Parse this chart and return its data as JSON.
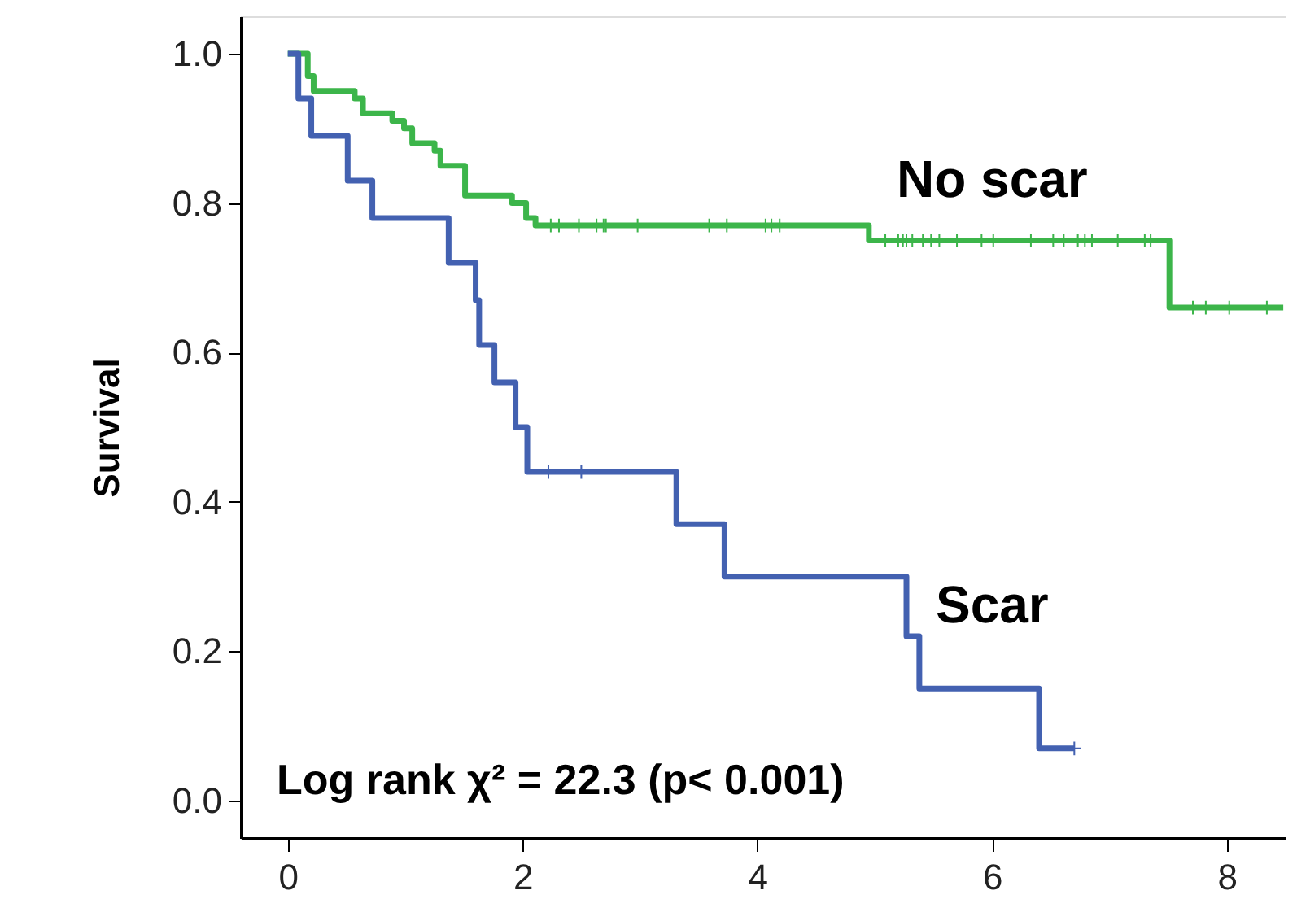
{
  "chart_data": {
    "type": "step",
    "ylabel": "Survival",
    "xlim": [
      -0.4,
      8.5
    ],
    "xticks": [
      0,
      2,
      4,
      6,
      8
    ],
    "ylim": [
      -0.05,
      1.05
    ],
    "yticks": [
      {
        "value": 0,
        "label": "0.0"
      },
      {
        "value": 0.2,
        "label": "0.2"
      },
      {
        "value": 0.4,
        "label": "0.4"
      },
      {
        "value": 0.6,
        "label": "0.6"
      },
      {
        "value": 0.8,
        "label": "0.8"
      },
      {
        "value": 1,
        "label": "1.0"
      }
    ],
    "grid": false,
    "legend": false,
    "annotations": [
      "Log rank  χ² = 22.3 (p< 0.001)"
    ],
    "series": [
      {
        "name": "No scar",
        "color": "#3cb54a",
        "x": [
          0,
          0.17,
          0.22,
          0.57,
          0.64,
          0.89,
          0.99,
          1.06,
          1.25,
          1.3,
          1.51,
          1.91,
          2.03,
          2.11,
          4.95,
          7.51,
          8.48
        ],
        "values": [
          1,
          0.97,
          0.95,
          0.94,
          0.92,
          0.91,
          0.9,
          0.88,
          0.87,
          0.85,
          0.81,
          0.8,
          0.78,
          0.77,
          0.75,
          0.66,
          0.66
        ]
      },
      {
        "name": "Scar",
        "color": "#4361b1",
        "x": [
          0,
          0.09,
          0.2,
          0.51,
          0.72,
          1.37,
          1.6,
          1.63,
          1.76,
          1.94,
          2.04,
          3.31,
          3.72,
          5.27,
          5.38,
          6.4,
          6.7
        ],
        "values": [
          1,
          0.94,
          0.89,
          0.83,
          0.78,
          0.72,
          0.67,
          0.61,
          0.56,
          0.5,
          0.44,
          0.37,
          0.3,
          0.22,
          0.15,
          0.07,
          0.07
        ]
      },
      {
        "type": "scatter",
        "marker": "cross",
        "color": "#3cb54a",
        "x": [
          2.24,
          2.31,
          2.48,
          2.63,
          2.69,
          2.71,
          2.98,
          3.59,
          3.74,
          4.07,
          4.12,
          4.19,
          5.09,
          5.2,
          5.24,
          5.27,
          5.32,
          5.41,
          5.48,
          5.55,
          5.7,
          5.91,
          6.01,
          6.33,
          6.52,
          6.61,
          6.73,
          6.79,
          6.85,
          7.07,
          7.3,
          7.35,
          7.71,
          7.82,
          8.02,
          8.34
        ],
        "values": [
          0.77,
          0.77,
          0.77,
          0.77,
          0.77,
          0.77,
          0.77,
          0.77,
          0.77,
          0.77,
          0.77,
          0.77,
          0.75,
          0.75,
          0.75,
          0.75,
          0.75,
          0.75,
          0.75,
          0.75,
          0.75,
          0.75,
          0.75,
          0.75,
          0.75,
          0.75,
          0.75,
          0.75,
          0.75,
          0.75,
          0.75,
          0.75,
          0.66,
          0.66,
          0.66,
          0.66
        ]
      },
      {
        "type": "scatter",
        "marker": "cross",
        "color": "#4361b1",
        "x": [
          2.22,
          2.5,
          6.7
        ],
        "values": [
          0.44,
          0.44,
          0.07
        ]
      }
    ]
  }
}
